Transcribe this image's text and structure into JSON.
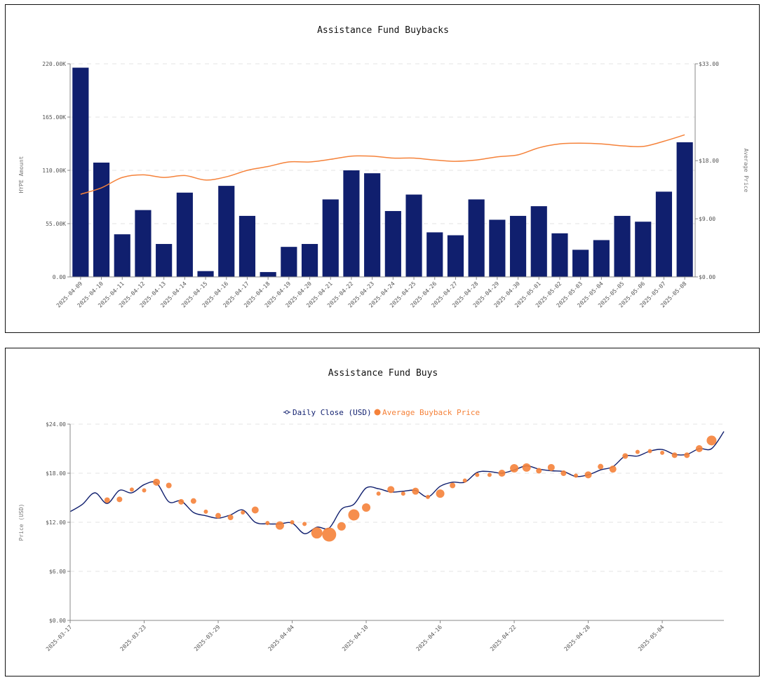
{
  "colors": {
    "bar": "#101f6e",
    "line_orange": "#f5823a",
    "dot_orange": "#f5823a",
    "close_line": "#101f6e",
    "grid": "#e3e3e3"
  },
  "chart_data": [
    {
      "type": "bar",
      "title": "Assistance Fund Buybacks",
      "ylabel": "HYPE Amount",
      "y2label": "Average Price",
      "ylim": [
        0,
        220000
      ],
      "y2lim": [
        0,
        33
      ],
      "y_ticks": [
        "0.00",
        "55.00K",
        "110.00K",
        "165.00K",
        "220.00K"
      ],
      "y2_ticks": [
        "$0.00",
        "$9.00",
        "$18.00",
        "$33.00"
      ],
      "y_tick_values": [
        0,
        55000,
        110000,
        165000,
        220000
      ],
      "y2_tick_values": [
        0,
        9,
        18,
        33
      ],
      "categories": [
        "2025-04-09",
        "2025-04-10",
        "2025-04-11",
        "2025-04-12",
        "2025-04-13",
        "2025-04-14",
        "2025-04-15",
        "2025-04-16",
        "2025-04-17",
        "2025-04-18",
        "2025-04-19",
        "2025-04-20",
        "2025-04-21",
        "2025-04-22",
        "2025-04-23",
        "2025-04-24",
        "2025-04-25",
        "2025-04-26",
        "2025-04-27",
        "2025-04-28",
        "2025-04-29",
        "2025-04-30",
        "2025-05-01",
        "2025-05-02",
        "2025-05-03",
        "2025-05-04",
        "2025-05-05",
        "2025-05-06",
        "2025-05-07",
        "2025-05-08"
      ],
      "series": [
        {
          "name": "HYPE Amount",
          "type": "bar",
          "axis": "left",
          "values": [
            216000,
            118000,
            44000,
            69000,
            34000,
            87000,
            6000,
            94000,
            63000,
            5000,
            31000,
            34000,
            80000,
            110000,
            107000,
            68000,
            85000,
            46000,
            43000,
            80000,
            59000,
            63000,
            73000,
            45000,
            28000,
            38000,
            63000,
            57000,
            88000,
            139000
          ]
        },
        {
          "name": "Average Price",
          "type": "line",
          "axis": "right",
          "values": [
            12.8,
            13.8,
            15.4,
            15.8,
            15.4,
            15.7,
            15.0,
            15.5,
            16.5,
            17.1,
            17.8,
            17.8,
            18.2,
            18.7,
            18.7,
            18.4,
            18.4,
            18.1,
            17.9,
            18.1,
            18.6,
            18.9,
            20.0,
            20.6,
            20.7,
            20.6,
            20.3,
            20.2,
            21.0,
            22.0
          ]
        }
      ]
    },
    {
      "type": "line",
      "title": "Assistance Fund Buys",
      "ylabel": "Price (USD)",
      "ylim": [
        0,
        24
      ],
      "y_ticks": [
        "$0.00",
        "$6.00",
        "$12.00",
        "$18.00",
        "$24.00"
      ],
      "y_tick_values": [
        0,
        6,
        12,
        18,
        24
      ],
      "x_range_days": [
        0,
        53
      ],
      "x_ticks": [
        {
          "label": "2025-03-17",
          "day": 0
        },
        {
          "label": "2025-03-23",
          "day": 6
        },
        {
          "label": "2025-03-29",
          "day": 12
        },
        {
          "label": "2025-04-04",
          "day": 18
        },
        {
          "label": "2025-04-10",
          "day": 24
        },
        {
          "label": "2025-04-16",
          "day": 30
        },
        {
          "label": "2025-04-22",
          "day": 36
        },
        {
          "label": "2025-04-28",
          "day": 42
        },
        {
          "label": "2025-05-04",
          "day": 48
        }
      ],
      "legend": [
        "Daily Close (USD)",
        "Average Buyback Price"
      ],
      "series": [
        {
          "name": "Daily Close (USD)",
          "type": "line",
          "x": [
            0,
            1,
            2,
            3,
            4,
            5,
            6,
            7,
            8,
            9,
            10,
            11,
            12,
            13,
            14,
            15,
            16,
            17,
            18,
            19,
            20,
            21,
            22,
            23,
            24,
            25,
            26,
            27,
            28,
            29,
            30,
            31,
            32,
            33,
            34,
            35,
            36,
            37,
            38,
            39,
            40,
            41,
            42,
            43,
            44,
            45,
            46,
            47,
            48,
            49,
            50,
            51,
            52,
            53
          ],
          "values": [
            13.3,
            14.2,
            15.6,
            14.3,
            15.9,
            15.6,
            16.6,
            16.8,
            14.5,
            14.6,
            13.2,
            12.8,
            12.5,
            12.9,
            13.5,
            12.0,
            11.8,
            11.8,
            11.9,
            10.6,
            11.4,
            11.3,
            13.6,
            14.2,
            16.2,
            16.1,
            15.7,
            15.8,
            15.9,
            15.1,
            16.4,
            16.9,
            16.9,
            18.1,
            18.2,
            18.0,
            18.4,
            18.9,
            18.5,
            18.3,
            18.2,
            17.6,
            17.8,
            18.4,
            18.8,
            20.1,
            20.1,
            20.7,
            20.9,
            20.3,
            20.3,
            21.0,
            21.0,
            23.1
          ]
        },
        {
          "name": "Average Buyback Price",
          "type": "scatter",
          "points": [
            {
              "x": 3,
              "y": 14.7,
              "s": 4
            },
            {
              "x": 4,
              "y": 14.8,
              "s": 4
            },
            {
              "x": 5,
              "y": 16.0,
              "s": 3
            },
            {
              "x": 6,
              "y": 15.9,
              "s": 3
            },
            {
              "x": 7,
              "y": 16.9,
              "s": 5
            },
            {
              "x": 8,
              "y": 16.5,
              "s": 4
            },
            {
              "x": 9,
              "y": 14.5,
              "s": 4
            },
            {
              "x": 10,
              "y": 14.6,
              "s": 4
            },
            {
              "x": 11,
              "y": 13.3,
              "s": 3
            },
            {
              "x": 12,
              "y": 12.8,
              "s": 4
            },
            {
              "x": 13,
              "y": 12.6,
              "s": 4
            },
            {
              "x": 14,
              "y": 13.2,
              "s": 3
            },
            {
              "x": 15,
              "y": 13.5,
              "s": 5
            },
            {
              "x": 16,
              "y": 11.9,
              "s": 3
            },
            {
              "x": 17,
              "y": 11.6,
              "s": 6
            },
            {
              "x": 18,
              "y": 12.0,
              "s": 3
            },
            {
              "x": 19,
              "y": 11.8,
              "s": 3
            },
            {
              "x": 20,
              "y": 10.7,
              "s": 8
            },
            {
              "x": 21,
              "y": 10.5,
              "s": 10
            },
            {
              "x": 22,
              "y": 11.5,
              "s": 6
            },
            {
              "x": 23,
              "y": 12.9,
              "s": 8
            },
            {
              "x": 24,
              "y": 13.8,
              "s": 6
            },
            {
              "x": 25,
              "y": 15.5,
              "s": 3
            },
            {
              "x": 26,
              "y": 16.0,
              "s": 5
            },
            {
              "x": 27,
              "y": 15.5,
              "s": 3
            },
            {
              "x": 28,
              "y": 15.8,
              "s": 5
            },
            {
              "x": 29,
              "y": 15.1,
              "s": 3
            },
            {
              "x": 30,
              "y": 15.5,
              "s": 6
            },
            {
              "x": 31,
              "y": 16.5,
              "s": 4
            },
            {
              "x": 32,
              "y": 17.1,
              "s": 3
            },
            {
              "x": 33,
              "y": 17.8,
              "s": 3
            },
            {
              "x": 34,
              "y": 17.8,
              "s": 3
            },
            {
              "x": 35,
              "y": 18.0,
              "s": 5
            },
            {
              "x": 36,
              "y": 18.6,
              "s": 6
            },
            {
              "x": 37,
              "y": 18.7,
              "s": 6
            },
            {
              "x": 38,
              "y": 18.3,
              "s": 4
            },
            {
              "x": 39,
              "y": 18.7,
              "s": 5
            },
            {
              "x": 40,
              "y": 18.0,
              "s": 4
            },
            {
              "x": 41,
              "y": 17.7,
              "s": 3
            },
            {
              "x": 42,
              "y": 17.8,
              "s": 5
            },
            {
              "x": 43,
              "y": 18.8,
              "s": 4
            },
            {
              "x": 44,
              "y": 18.5,
              "s": 5
            },
            {
              "x": 45,
              "y": 20.1,
              "s": 4
            },
            {
              "x": 46,
              "y": 20.6,
              "s": 3
            },
            {
              "x": 47,
              "y": 20.7,
              "s": 3
            },
            {
              "x": 48,
              "y": 20.5,
              "s": 3
            },
            {
              "x": 49,
              "y": 20.2,
              "s": 4
            },
            {
              "x": 50,
              "y": 20.2,
              "s": 4
            },
            {
              "x": 51,
              "y": 21.0,
              "s": 5
            },
            {
              "x": 52,
              "y": 22.0,
              "s": 7
            }
          ]
        }
      ]
    }
  ]
}
